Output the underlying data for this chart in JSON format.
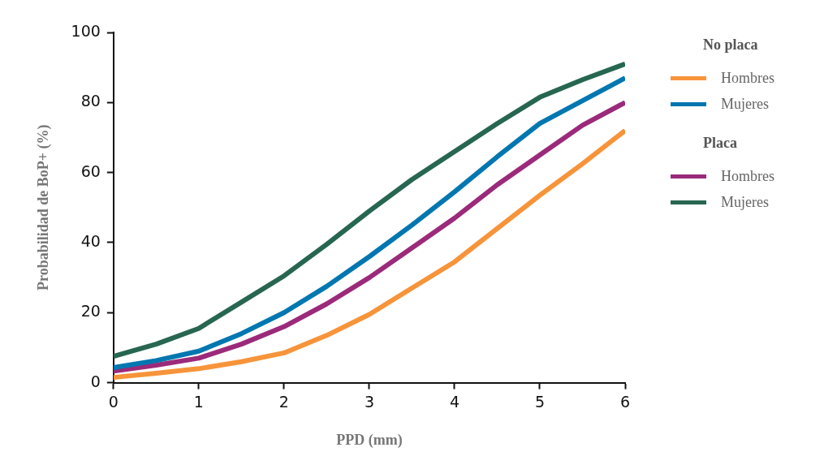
{
  "chart_data": {
    "type": "line",
    "xlabel": "PPD (mm)",
    "ylabel": "Probabilidad de BoP+ (%)",
    "legend_title": "No placa",
    "annotations": [
      "Placa"
    ],
    "x": [
      0,
      0.5,
      1,
      1.5,
      2,
      2.5,
      3,
      3.5,
      4,
      4.5,
      5,
      5.5,
      6
    ],
    "xlim": [
      0,
      6
    ],
    "xticks": [
      0,
      1,
      2,
      3,
      4,
      5,
      6
    ],
    "ylim": [
      0,
      100
    ],
    "yticks": [
      0,
      20,
      40,
      60,
      80,
      100
    ],
    "grid": false,
    "legend": "right",
    "marker": "none",
    "line_style": "solid",
    "series": [
      {
        "name": "Hombres",
        "color": "#f7943a",
        "values": [
          1.5,
          2.7,
          4,
          6,
          8.5,
          13.5,
          19.5,
          27,
          34.5,
          44,
          53.5,
          62.5,
          72
        ]
      },
      {
        "name": "Mujeres",
        "color": "#0077b0",
        "values": [
          4.3,
          6.3,
          9,
          14,
          20,
          27.5,
          36,
          45,
          54.5,
          64.5,
          74,
          80.5,
          87
        ]
      },
      {
        "name": "Hombres",
        "color": "#9b2a7a",
        "values": [
          3.3,
          5,
          7,
          11,
          16,
          22.5,
          30,
          38.5,
          47,
          56.5,
          65,
          73.5,
          80
        ]
      },
      {
        "name": "Mujeres",
        "color": "#276650",
        "values": [
          7.5,
          11,
          15.5,
          23,
          30.5,
          39.5,
          49,
          58,
          66,
          74,
          81.5,
          86.5,
          91
        ]
      }
    ]
  }
}
